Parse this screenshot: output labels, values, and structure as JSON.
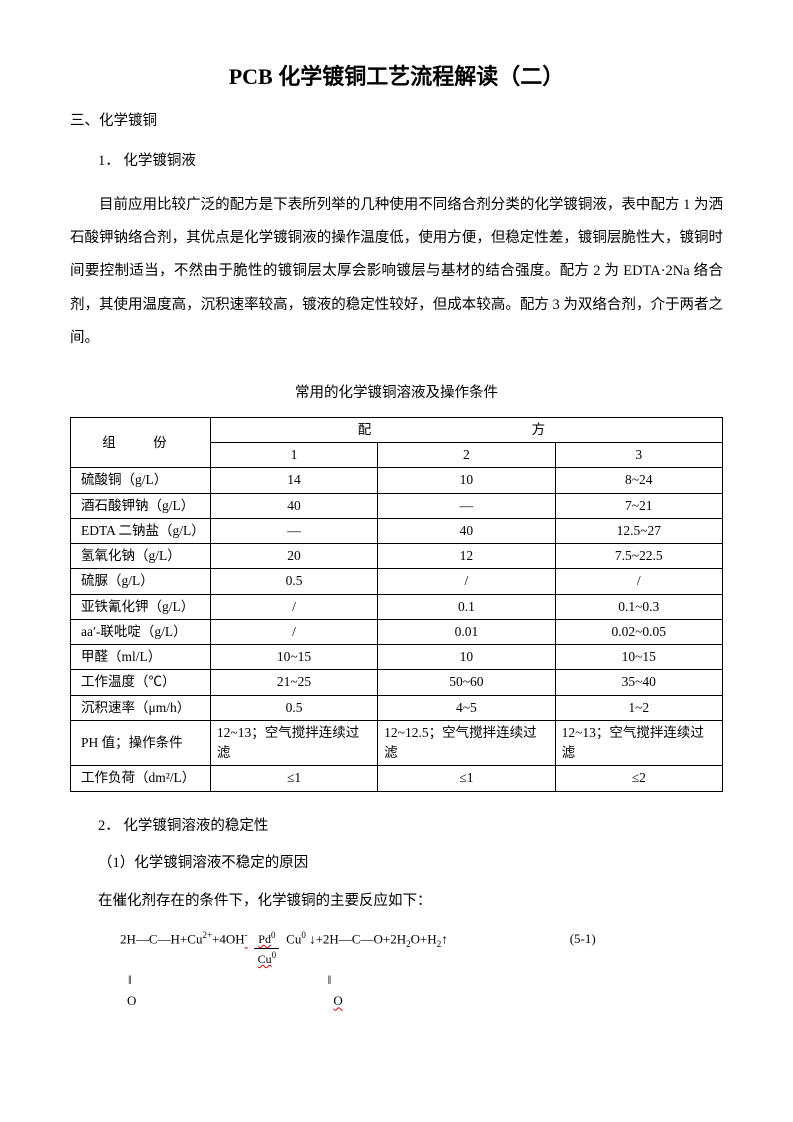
{
  "title": "PCB 化学镀铜工艺流程解读（二）",
  "section_heading": "三、化学镀铜",
  "subsection_1": "1． 化学镀铜液",
  "paragraph_1": "目前应用比较广泛的配方是下表所列举的几种使用不同络合剂分类的化学镀铜液，表中配方 1 为洒石酸钾钠络合剂，其优点是化学镀铜液的操作温度低，使用方便，但稳定性差，镀铜层脆性大，镀铜时间要控制适当，不然由于脆性的镀铜层太厚会影响镀层与基材的结合强度。配方 2 为 EDTA·2Na 络合剂，其使用温度高，沉积速率较高，镀液的稳定性较好，但成本较高。配方 3 为双络合剂，介于两者之间。",
  "table": {
    "caption": "常用的化学镀铜溶液及操作条件",
    "header_component": "组　份",
    "header_recipe": "配　　　方",
    "col_headers": [
      "1",
      "2",
      "3"
    ],
    "rows": [
      {
        "label": "硫酸铜（g/L）",
        "v": [
          "14",
          "10",
          "8~24"
        ]
      },
      {
        "label": "酒石酸钾钠（g/L）",
        "v": [
          "40",
          "—",
          "7~21"
        ]
      },
      {
        "label": "EDTA 二钠盐（g/L）",
        "v": [
          "—",
          "40",
          "12.5~27"
        ]
      },
      {
        "label": "氢氧化钠（g/L）",
        "v": [
          "20",
          "12",
          "7.5~22.5"
        ]
      },
      {
        "label": "硫脲（g/L）",
        "v": [
          "0.5",
          "/",
          "/"
        ]
      },
      {
        "label": "亚铁氰化钾（g/L）",
        "v": [
          "/",
          "0.1",
          "0.1~0.3"
        ]
      },
      {
        "label": "aa′-联吡啶（g/L）",
        "v": [
          "/",
          "0.01",
          "0.02~0.05"
        ]
      },
      {
        "label": "甲醛（ml/L）",
        "v": [
          "10~15",
          "10",
          "10~15"
        ]
      },
      {
        "label": "工作温度（℃）",
        "v": [
          "21~25",
          "50~60",
          "35~40"
        ]
      },
      {
        "label": "沉积速率（μm/h）",
        "v": [
          "0.5",
          "4~5",
          "1~2"
        ]
      },
      {
        "label": "PH 值；操作条件",
        "v": [
          "12~13；空气搅拌连续过滤",
          "12~12.5；空气搅拌连续过滤",
          "12~13；空气搅拌连续过滤"
        ]
      },
      {
        "label": "工作负荷（dm²/L）",
        "v": [
          "≤1",
          "≤1",
          "≤2"
        ]
      }
    ]
  },
  "subsection_2": "2． 化学镀铜溶液的稳定性",
  "subsection_2_1": "（1）化学镀铜溶液不稳定的原因",
  "body_text_1": "在催化剂存在的条件下，化学镀铜的主要反应如下：",
  "equation": {
    "left_part": "2H—C—H+Cu²⁺+4OH⁻",
    "frac_top": "Pd⁰",
    "frac_bot": "Cu⁰",
    "right_part": "Cu⁰ ↓+2H—C—O+2H₂O+H₂↑",
    "number": "(5-1)",
    "sub_bar_left": "‖",
    "sub_bar_right": "‖",
    "sub_o_left": "O",
    "sub_o_right": "O"
  },
  "colors": {
    "text": "#000000",
    "background": "#ffffff",
    "border": "#000000",
    "wavy_underline": "#cc0000"
  }
}
